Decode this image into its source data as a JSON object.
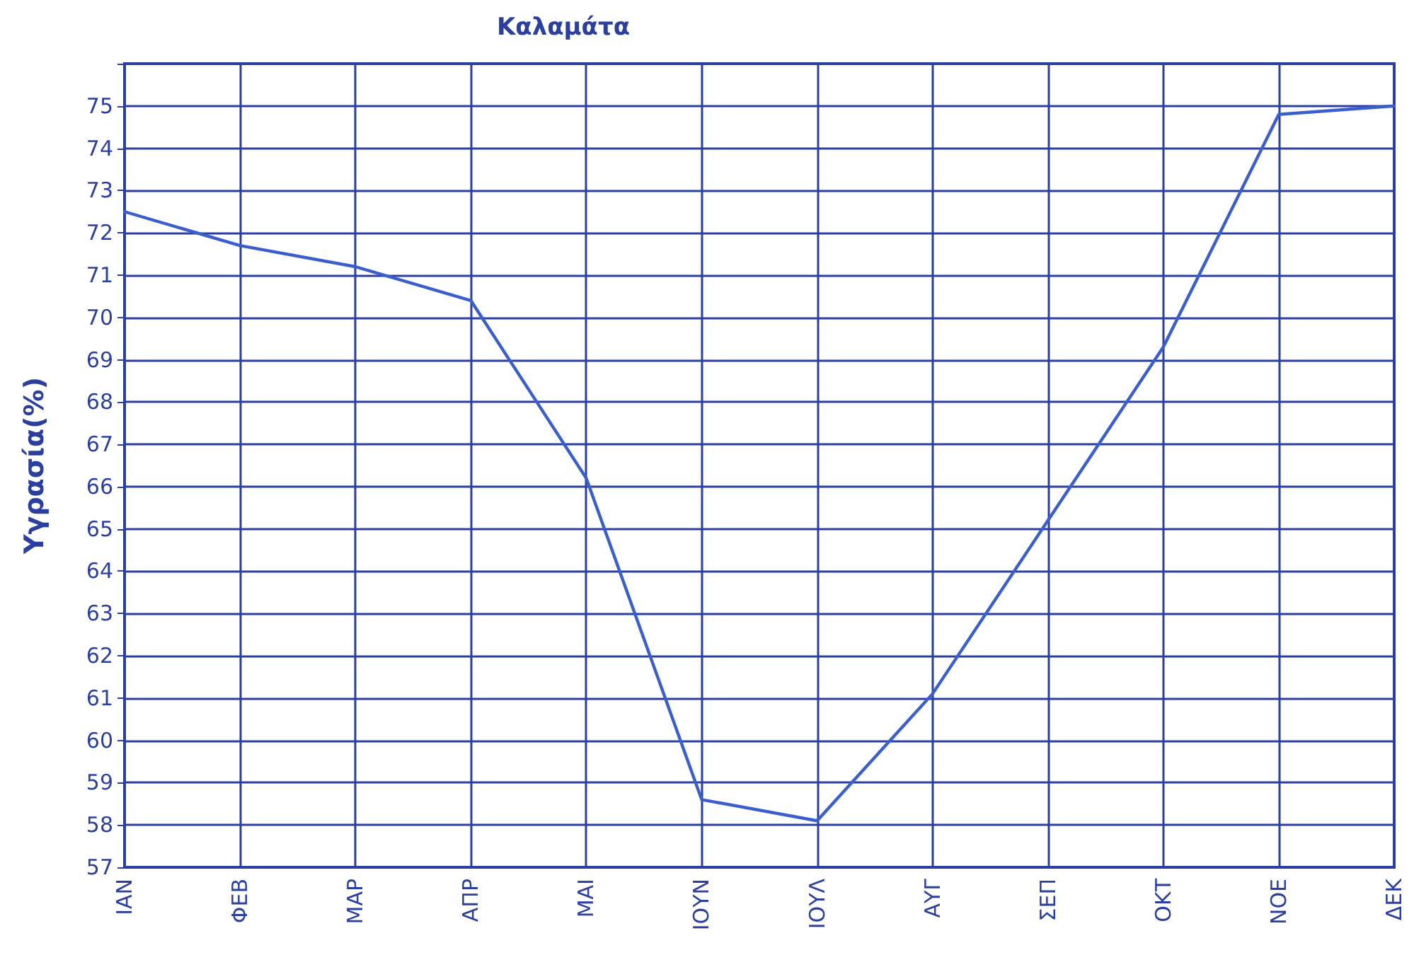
{
  "chart_data": {
    "type": "line",
    "title": "Καλαμάτα",
    "ylabel": "Υγρασία(%)",
    "categories": [
      "ΙΑΝ",
      "ΦΕΒ",
      "ΜΑΡ",
      "ΑΠΡ",
      "ΜΑΙ",
      "ΙΟΥΝ",
      "ΙΟΥΛ",
      "ΑΥΓ",
      "ΣΕΠ",
      "ΟΚΤ",
      "ΝΟΕ",
      "ΔΕΚ"
    ],
    "series": [
      {
        "color": "#3a5fcd",
        "values": [
          72.5,
          71.7,
          71.2,
          70.4,
          66.2,
          58.6,
          58.1,
          61.1,
          65.2,
          69.3,
          74.8,
          75.0
        ]
      }
    ],
    "ylim": [
      57,
      76
    ],
    "yticks": [
      57,
      58,
      59,
      60,
      61,
      62,
      63,
      64,
      65,
      66,
      67,
      68,
      69,
      70,
      71,
      72,
      73,
      74,
      75,
      {
        "value": 76,
        "label": null
      }
    ],
    "grid": true,
    "marker": "none",
    "line_style": "solid"
  }
}
